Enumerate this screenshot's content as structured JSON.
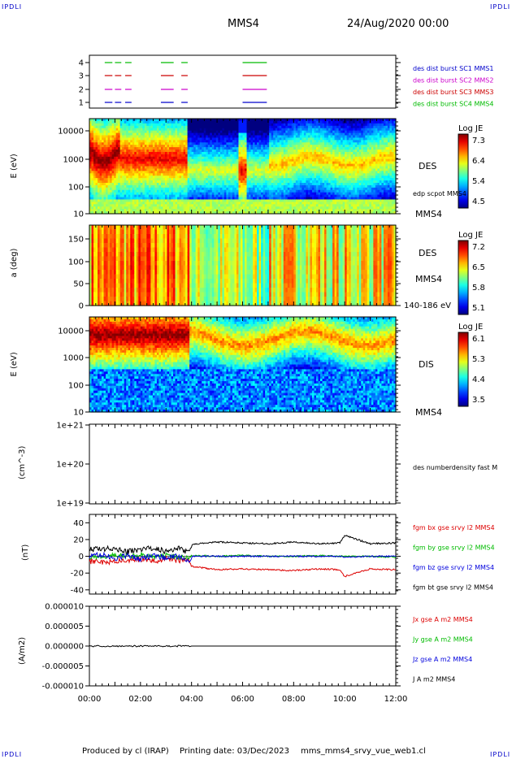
{
  "header": {
    "corner_tag": "IPDLI",
    "spacecraft": "MMS4",
    "date_time": "24/Aug/2020 00:00"
  },
  "footer": {
    "produced_by": "Produced by cl (IRAP)",
    "printing_date": "Printing date: 03/Dec/2023",
    "script_name": "mms_mms4_srvy_vue_web1.cl"
  },
  "colors": {
    "mms1": "#0000cc",
    "mms2": "#cc00cc",
    "mms3": "#cc0000",
    "mms4": "#00bb00",
    "bx": "#dd0000",
    "by": "#00bb00",
    "bz": "#0000dd",
    "bt": "#000000"
  },
  "chart_data": [
    {
      "type": "availability",
      "panel": "burst",
      "y_ticks": [
        "4",
        "3",
        "2",
        "1"
      ],
      "labels": [
        "des dist burst SC1 MMS1",
        "des dist burst SC2 MMS2",
        "des dist burst SC3 MMS3",
        "des dist burst SC4 MMS4"
      ],
      "intervals_hours": [
        [
          0.6,
          0.9
        ],
        [
          1.0,
          1.25
        ],
        [
          1.4,
          1.65
        ],
        [
          2.8,
          3.3
        ],
        [
          3.6,
          3.85
        ],
        [
          6.0,
          6.95
        ]
      ]
    },
    {
      "type": "heatmap",
      "panel": "des_energy",
      "ylabel": "E (eV)",
      "y_scale": "log",
      "y_ticks": [
        "10000",
        "1000",
        "100",
        "10"
      ],
      "label": "DES",
      "sub_label": "MMS4",
      "overlay_label": "edp scpot MMS4",
      "colorbar": {
        "title": "Log JE",
        "ticks": [
          "7.3",
          "6.4",
          "5.4",
          "4.5"
        ],
        "range": [
          4.5,
          7.3
        ]
      }
    },
    {
      "type": "heatmap",
      "panel": "des_pitch",
      "ylabel": "a (deg)",
      "y_ticks": [
        "150",
        "100",
        "50",
        "0"
      ],
      "ylim": [
        0,
        180
      ],
      "label": "DES",
      "sub_label": "MMS4",
      "energy_range": "140-186 eV",
      "colorbar": {
        "title": "Log JE",
        "ticks": [
          "7.2",
          "6.5",
          "5.8",
          "5.1"
        ],
        "range": [
          5.1,
          7.2
        ]
      }
    },
    {
      "type": "heatmap",
      "panel": "dis_energy",
      "ylabel": "E (eV)",
      "y_scale": "log",
      "y_ticks": [
        "10000",
        "1000",
        "100",
        "10"
      ],
      "label": "DIS",
      "sub_label": "MMS4",
      "colorbar": {
        "title": "Log JE",
        "ticks": [
          "6.1",
          "5.3",
          "4.4",
          "3.5"
        ],
        "range": [
          3.5,
          6.1
        ]
      }
    },
    {
      "type": "line",
      "panel": "density",
      "ylabel": "(cm^-3)",
      "y_scale": "log",
      "y_ticks": [
        "1e+21",
        "1e+20",
        "1e+19"
      ],
      "legend": [
        "des numberdensity fast M"
      ],
      "series": []
    },
    {
      "type": "line",
      "panel": "magnetic_field",
      "ylabel": "(nT)",
      "ylim": [
        -45,
        50
      ],
      "y_ticks": [
        "40",
        "20",
        "0",
        "-20",
        "-40"
      ],
      "legend": [
        "fgm bx gse srvy l2 MMS4",
        "fgm by gse srvy l2 MMS4",
        "fgm bz gse srvy l2 MMS4",
        "fgm bt gse srvy l2 MMS4"
      ],
      "x_hours": [
        0,
        0.5,
        1,
        1.5,
        2,
        2.5,
        3,
        3.5,
        3.9,
        4,
        5,
        6,
        7,
        8,
        9,
        9.8,
        10,
        11,
        12
      ],
      "series": [
        {
          "name": "fgm bx gse srvy l2 MMS4",
          "values": [
            -6,
            -7,
            -6,
            -5,
            -3,
            -6,
            -3,
            -5,
            -3,
            -12,
            -16,
            -15,
            -16,
            -17,
            -15,
            -16,
            -24,
            -15,
            -16
          ]
        },
        {
          "name": "fgm by gse srvy l2 MMS4",
          "values": [
            -1,
            0,
            1,
            0,
            2,
            0,
            1,
            -1,
            0,
            1,
            0,
            1,
            0,
            0,
            1,
            0,
            0,
            0,
            -1
          ]
        },
        {
          "name": "fgm bz gse srvy l2 MMS4",
          "values": [
            0,
            2,
            -3,
            1,
            -4,
            2,
            -2,
            0,
            -5,
            0,
            0,
            0,
            0,
            0,
            0,
            0,
            -1,
            0,
            0
          ]
        },
        {
          "name": "fgm bt gse srvy l2 MMS4",
          "values": [
            8,
            9,
            9,
            6,
            8,
            10,
            6,
            10,
            4,
            14,
            17,
            16,
            15,
            17,
            15,
            16,
            25,
            15,
            16
          ]
        }
      ]
    },
    {
      "type": "line",
      "panel": "current_density",
      "ylabel": "(A/m2)",
      "ylim": [
        -1e-05,
        1e-05
      ],
      "y_ticks": [
        "0.000010",
        "0.000005",
        "0.000000",
        "-0.000005",
        "-0.000010"
      ],
      "legend": [
        "Jx gse A m2 MMS4",
        "Jy gse A m2 MMS4",
        "Jz gse A m2 MMS4",
        "J A m2 MMS4"
      ],
      "x_hours": [
        0,
        12
      ],
      "series": [
        {
          "name": "J A m2 MMS4",
          "values": [
            0,
            0
          ]
        }
      ]
    }
  ],
  "x_axis": {
    "tick_labels": [
      "00:00",
      "02:00",
      "04:00",
      "06:00",
      "08:00",
      "10:00",
      "12:00"
    ],
    "range_hours": [
      0,
      12
    ]
  }
}
